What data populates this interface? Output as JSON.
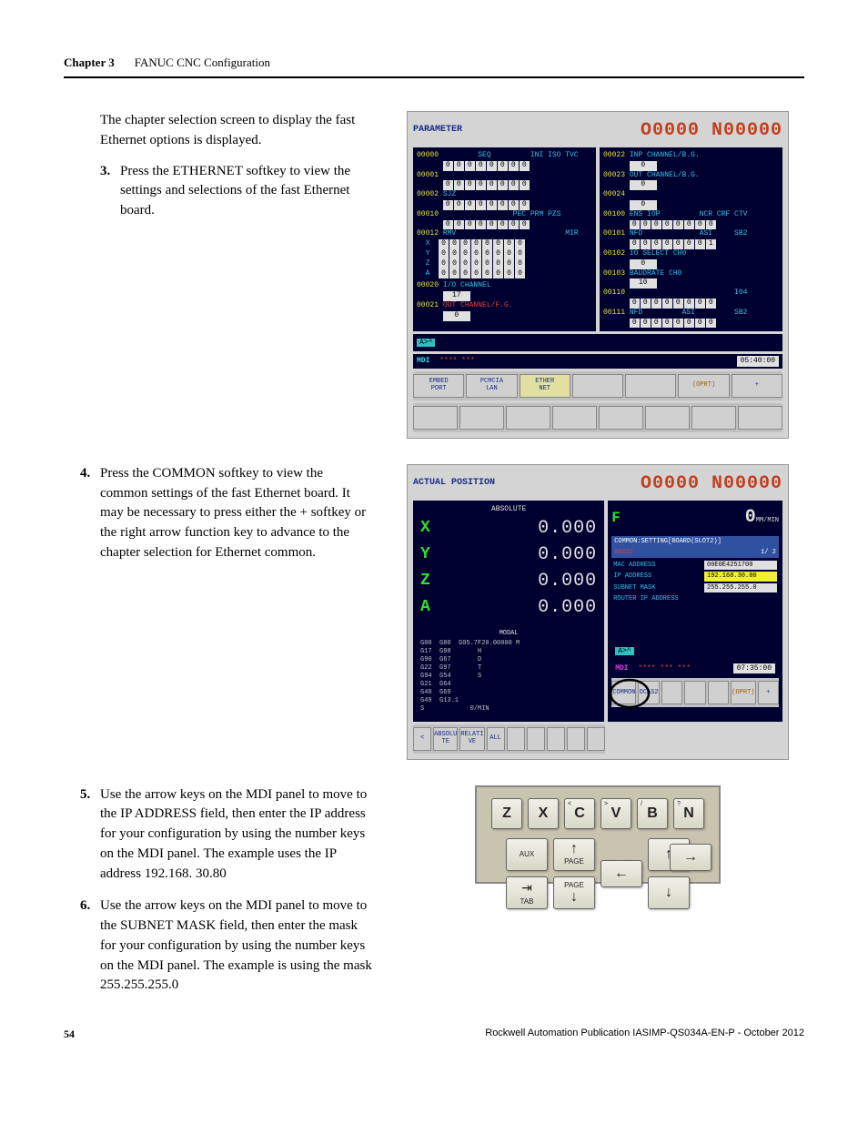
{
  "header": {
    "chapter_label": "Chapter 3",
    "chapter_title": "FANUC CNC Configuration"
  },
  "intro_para": "The chapter selection screen to display the fast Ethernet options is displayed.",
  "steps": [
    {
      "num": "3.",
      "text": "Press the ETHERNET softkey to view the settings and selections of the fast Ethernet board."
    },
    {
      "num": "4.",
      "text": "Press the COMMON softkey to view the common settings of the fast Ethernet board. It may be necessary to press either the + softkey or the right arrow function key to advance to the chapter selection for Ethernet common."
    },
    {
      "num": "5.",
      "text": "Use the arrow keys on the MDI panel to move to the IP ADDRESS field, then enter the IP address for your configuration by using the number keys on the MDI panel. The example uses the IP address 192.168. 30.80"
    },
    {
      "num": "6.",
      "text": "Use the arrow keys on the MDI panel to move to the SUBNET MASK field, then enter the mask for your configuration by using the number keys on the MDI panel. The example is using the mask 255.255.255.0"
    }
  ],
  "cnc1": {
    "title_left": "PARAMETER",
    "title_right": "O0000 N00000",
    "left_rows": [
      {
        "id": "00000",
        "hdr": "        SEQ         INI ISO TVC",
        "bits": [
          "0",
          "0",
          "0",
          "0",
          "0",
          "0",
          "0",
          "0"
        ]
      },
      {
        "id": "00001",
        "hdr": "",
        "bits": [
          "0",
          "0",
          "0",
          "0",
          "0",
          "0",
          "0",
          "0"
        ]
      },
      {
        "id": "00002",
        "hdr": "SJZ",
        "bits": [
          "0",
          "0",
          "0",
          "0",
          "0",
          "0",
          "0",
          "0"
        ]
      },
      {
        "id": "00010",
        "hdr": "                PEC PRM PZS",
        "bits": [
          "0",
          "0",
          "0",
          "0",
          "0",
          "0",
          "0",
          "0"
        ]
      }
    ],
    "axis_block_id": "00012",
    "axis_block_hdr": "RMV                         MIR",
    "axis_rows": [
      {
        "ax": "X",
        "bits": [
          "0",
          "0",
          "0",
          "0",
          "0",
          "0",
          "0",
          "0"
        ]
      },
      {
        "ax": "Y",
        "bits": [
          "0",
          "0",
          "0",
          "0",
          "0",
          "0",
          "0",
          "0"
        ]
      },
      {
        "ax": "Z",
        "bits": [
          "0",
          "0",
          "0",
          "0",
          "0",
          "0",
          "0",
          "0"
        ]
      },
      {
        "ax": "A",
        "bits": [
          "0",
          "0",
          "0",
          "0",
          "0",
          "0",
          "0",
          "0"
        ]
      }
    ],
    "io_channel": {
      "id": "00020",
      "label": "I/O CHANNEL",
      "val": "17"
    },
    "out_channel": {
      "id": "00021",
      "label": "OUT CHANNEL/F.G.",
      "val": "0"
    },
    "right_rows": [
      {
        "id": "00022",
        "label": "INP CHANNEL/B.G.",
        "val": "0"
      },
      {
        "id": "00023",
        "label": "OUT CHANNEL/B.G.",
        "val": "0"
      },
      {
        "id": "00024",
        "label": "",
        "val": "0"
      }
    ],
    "right_bits": [
      {
        "id": "00100",
        "hdr": "ENS IOP         NCR CRF CTV",
        "bits": [
          "0",
          "0",
          "0",
          "0",
          "0",
          "0",
          "0",
          "0"
        ]
      },
      {
        "id": "00101",
        "hdr": "NFD             ASI     SB2",
        "bits": [
          "0",
          "0",
          "0",
          "0",
          "0",
          "0",
          "0",
          "1"
        ]
      }
    ],
    "io_select": {
      "id": "00102",
      "label": "IO SELECT CH0",
      "val": "0"
    },
    "baudrate": {
      "id": "00103",
      "label": "BAUDRATE CH0",
      "val": "10"
    },
    "right_bits2": [
      {
        "id": "00110",
        "hdr": "                        I04",
        "bits": [
          "0",
          "0",
          "0",
          "0",
          "0",
          "0",
          "0",
          "0"
        ]
      },
      {
        "id": "00111",
        "hdr": "NFD         ASI         SB2",
        "bits": [
          "0",
          "0",
          "0",
          "0",
          "0",
          "0",
          "0",
          "0"
        ]
      }
    ],
    "prompt": "A>^",
    "mdi_label": "MDI",
    "stars": "**** ***",
    "time": "05:40:00",
    "softkeys_top": [
      "EMBED PORT",
      "PCMCIA LAN",
      "ETHER NET",
      "",
      "",
      "(OPRT)",
      "+"
    ],
    "softkeys_bottom_blank": 8
  },
  "cnc2": {
    "title_left": "ACTUAL POSITION",
    "title_right": "O0000 N00000",
    "absolute_label": "ABSOLUTE",
    "axes": [
      {
        "ax": "X",
        "val": "0.000"
      },
      {
        "ax": "Y",
        "val": "0.000"
      },
      {
        "ax": "Z",
        "val": "0.000"
      },
      {
        "ax": "A",
        "val": "0.000"
      }
    ],
    "feed_label": "F",
    "feed_val": "0",
    "feed_unit": "MM/MIN",
    "common_header": "COMMON:SETTING[BOARD(SLOT2)]",
    "basic_label": "BASIC",
    "basic_page": "1/ 2",
    "net_rows": [
      {
        "label": "MAC ADDRESS",
        "val": "00E0E4251700",
        "hl": false
      },
      {
        "label": "IP ADDRESS",
        "val": "192.168.30.80",
        "hl": true
      },
      {
        "label": "SUBNET MASK",
        "val": "255.255.255.0",
        "hl": false
      },
      {
        "label": "ROUTER IP ADDRESS",
        "val": "",
        "hl": false
      }
    ],
    "modal_header": "MODAL",
    "modal_lines": [
      "G00  G80  G05.7F20.00000 M",
      "G17  G98       H",
      "G90  G67       D",
      "G22  G97       T",
      "G94  G54       S",
      "G21  G64",
      "G40  G69",
      "G49  G13.1",
      "S            0/MIN"
    ],
    "prompt": "A>^",
    "mdi_label": "MDI",
    "stars": "**** *** ***",
    "time": "07:35:00",
    "softkeys_left": [
      "<",
      "ABSOLU TE",
      "RELATI VE",
      "ALL",
      "",
      "",
      "",
      "",
      ""
    ],
    "softkeys_right": [
      "COMMON",
      "OCAS2",
      "",
      "",
      "",
      "(OPRT)",
      "+"
    ]
  },
  "keypad": {
    "top_row": [
      {
        "sup": "",
        "main": "Z"
      },
      {
        "sup": "",
        "main": "X"
      },
      {
        "sup": "<",
        "main": "C"
      },
      {
        "sup": ">",
        "main": "V"
      },
      {
        "sup": "/",
        "main": "B"
      },
      {
        "sup": "?",
        "main": "N"
      }
    ],
    "nav": {
      "aux": "AUX",
      "page_up": "PAGE",
      "up": "↑",
      "tab": "TAB",
      "page_dn": "PAGE",
      "down": "↓",
      "left": "←",
      "right": "→"
    }
  },
  "footer": {
    "page": "54",
    "pub": "Rockwell Automation Publication IASIMP-QS034A-EN-P - October 2012"
  },
  "colors": {
    "cnc_bg": "#000030",
    "cnc_panel_bg": "#d4d4d4",
    "title_red": "#c04020",
    "title_blue": "#1a2a8a",
    "cyan": "#30c0e0",
    "green": "#30e030",
    "yellow_hl": "#f0f030",
    "keypad_bg": "#c8c4b0"
  }
}
